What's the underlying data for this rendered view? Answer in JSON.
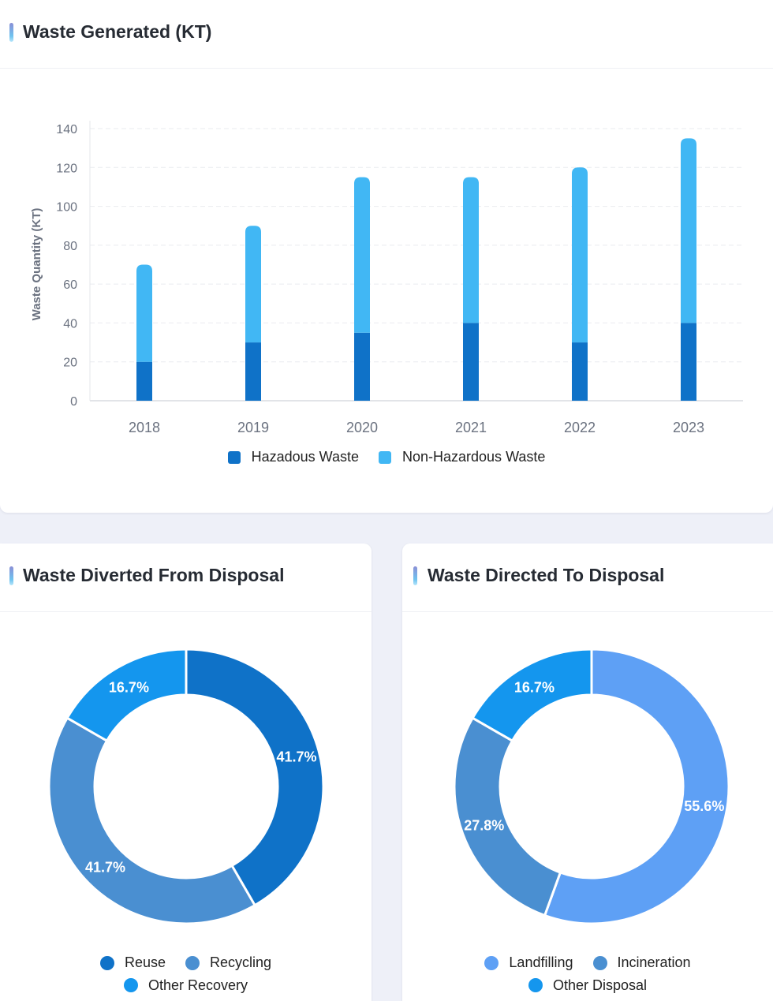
{
  "colors": {
    "hazardous": "#0f72c8",
    "nonHazardous": "#41b7f4",
    "reuse": "#0f72c8",
    "recycling": "#4a8fd1",
    "otherRecovery": "#1496ee",
    "landfilling": "#5ea0f5",
    "incineration": "#4a8fd1",
    "otherDisposal": "#1496ee"
  },
  "cards": {
    "generated": {
      "title": "Waste Generated (KT)"
    },
    "diverted": {
      "title": "Waste Diverted From Disposal"
    },
    "directed": {
      "title": "Waste Directed To Disposal"
    }
  },
  "chart_data": [
    {
      "type": "bar",
      "stacked": true,
      "title": "Waste Generated (KT)",
      "xlabel": "",
      "ylabel": "Waste Quantity (KT)",
      "ylim": [
        0,
        140
      ],
      "yticks": [
        0,
        20,
        40,
        60,
        80,
        100,
        120,
        140
      ],
      "categories": [
        "2018",
        "2019",
        "2020",
        "2021",
        "2022",
        "2023"
      ],
      "series": [
        {
          "name": "Hazadous Waste",
          "color": "#0f72c8",
          "values": [
            20,
            30,
            35,
            40,
            30,
            40
          ]
        },
        {
          "name": "Non-Hazardous Waste",
          "color": "#41b7f4",
          "values": [
            50,
            60,
            80,
            75,
            90,
            95
          ]
        }
      ],
      "legend": "bottom"
    },
    {
      "type": "pie",
      "donut": true,
      "title": "Waste Diverted From Disposal",
      "slices": [
        {
          "name": "Reuse",
          "value": 41.7,
          "label": "41.7%",
          "color": "#0f72c8"
        },
        {
          "name": "Recycling",
          "value": 41.7,
          "label": "41.7%",
          "color": "#4a8fd1"
        },
        {
          "name": "Other Recovery",
          "value": 16.7,
          "label": "16.7%",
          "color": "#1496ee"
        }
      ],
      "legend": "bottom"
    },
    {
      "type": "pie",
      "donut": true,
      "title": "Waste Directed To Disposal",
      "slices": [
        {
          "name": "Landfilling",
          "value": 55.6,
          "label": "55.6%",
          "color": "#5ea0f5"
        },
        {
          "name": "Incineration",
          "value": 27.8,
          "label": "27.8%",
          "color": "#4a8fd1"
        },
        {
          "name": "Other Disposal",
          "value": 16.7,
          "label": "16.7%",
          "color": "#1496ee"
        }
      ],
      "legend": "bottom"
    }
  ]
}
